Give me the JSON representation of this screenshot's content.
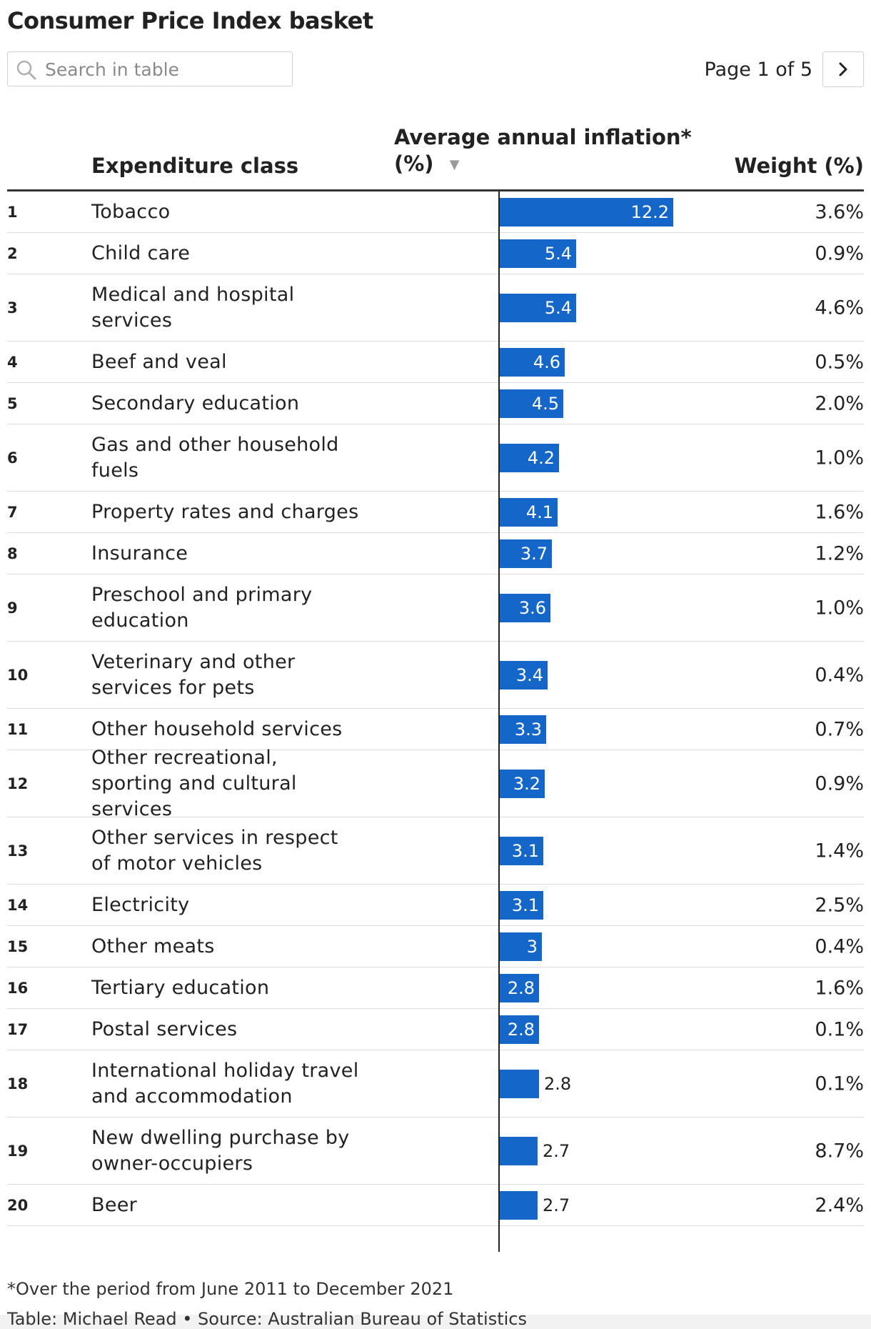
{
  "title": "Consumer Price Index basket",
  "search": {
    "placeholder": "Search in table",
    "icon": "search-icon"
  },
  "pagination": {
    "label": "Page 1 of 5",
    "next_icon": "chevron-right-icon"
  },
  "columns": {
    "rank": "",
    "class": "Expenditure class",
    "inflation_line1": "Average annual inflation*",
    "inflation_line2": "(%)",
    "sort_icon": "▼",
    "weight": "Weight (%)"
  },
  "colors": {
    "bar": "#1467c9",
    "axis": "#222222"
  },
  "chart_data": {
    "type": "table",
    "sort": {
      "column": "Average annual inflation*",
      "order": "descending"
    },
    "xlim": [
      0,
      12.2
    ],
    "rows": [
      {
        "rank": "1",
        "class": "Tobacco",
        "inflation": 12.2,
        "inflation_label": "12.2",
        "weight": "3.6%"
      },
      {
        "rank": "2",
        "class": "Child care",
        "inflation": 5.4,
        "inflation_label": "5.4",
        "weight": "0.9%"
      },
      {
        "rank": "3",
        "class": "Medical and hospital services",
        "inflation": 5.4,
        "inflation_label": "5.4",
        "weight": "4.6%"
      },
      {
        "rank": "4",
        "class": "Beef and veal",
        "inflation": 4.6,
        "inflation_label": "4.6",
        "weight": "0.5%"
      },
      {
        "rank": "5",
        "class": "Secondary education",
        "inflation": 4.5,
        "inflation_label": "4.5",
        "weight": "2.0%"
      },
      {
        "rank": "6",
        "class": "Gas and other household fuels",
        "inflation": 4.2,
        "inflation_label": "4.2",
        "weight": "1.0%"
      },
      {
        "rank": "7",
        "class": "Property rates and charges",
        "inflation": 4.1,
        "inflation_label": "4.1",
        "weight": "1.6%"
      },
      {
        "rank": "8",
        "class": "Insurance",
        "inflation": 3.7,
        "inflation_label": "3.7",
        "weight": "1.2%"
      },
      {
        "rank": "9",
        "class": "Preschool and primary education",
        "inflation": 3.6,
        "inflation_label": "3.6",
        "weight": "1.0%"
      },
      {
        "rank": "10",
        "class": "Veterinary and other services for pets",
        "inflation": 3.4,
        "inflation_label": "3.4",
        "weight": "0.4%"
      },
      {
        "rank": "11",
        "class": "Other household services",
        "inflation": 3.3,
        "inflation_label": "3.3",
        "weight": "0.7%"
      },
      {
        "rank": "12",
        "class": "Other recreational, sporting and cultural services",
        "inflation": 3.2,
        "inflation_label": "3.2",
        "weight": "0.9%"
      },
      {
        "rank": "13",
        "class": "Other services in respect of motor vehicles",
        "inflation": 3.1,
        "inflation_label": "3.1",
        "weight": "1.4%"
      },
      {
        "rank": "14",
        "class": "Electricity",
        "inflation": 3.1,
        "inflation_label": "3.1",
        "weight": "2.5%"
      },
      {
        "rank": "15",
        "class": "Other meats",
        "inflation": 3.0,
        "inflation_label": "3",
        "weight": "0.4%"
      },
      {
        "rank": "16",
        "class": "Tertiary education",
        "inflation": 2.8,
        "inflation_label": "2.8",
        "weight": "1.6%"
      },
      {
        "rank": "17",
        "class": "Postal services",
        "inflation": 2.8,
        "inflation_label": "2.8",
        "weight": "0.1%"
      },
      {
        "rank": "18",
        "class": "International holiday travel and accommodation",
        "inflation": 2.8,
        "inflation_label": "2.8",
        "weight": "0.1%"
      },
      {
        "rank": "19",
        "class": "New dwelling purchase by owner-occupiers",
        "inflation": 2.7,
        "inflation_label": "2.7",
        "weight": "8.7%"
      },
      {
        "rank": "20",
        "class": "Beer",
        "inflation": 2.7,
        "inflation_label": "2.7",
        "weight": "2.4%"
      }
    ]
  },
  "footnote": "*Over the period from June 2011 to December 2021",
  "credit": "Table: Michael Read • Source: Australian Bureau of Statistics"
}
